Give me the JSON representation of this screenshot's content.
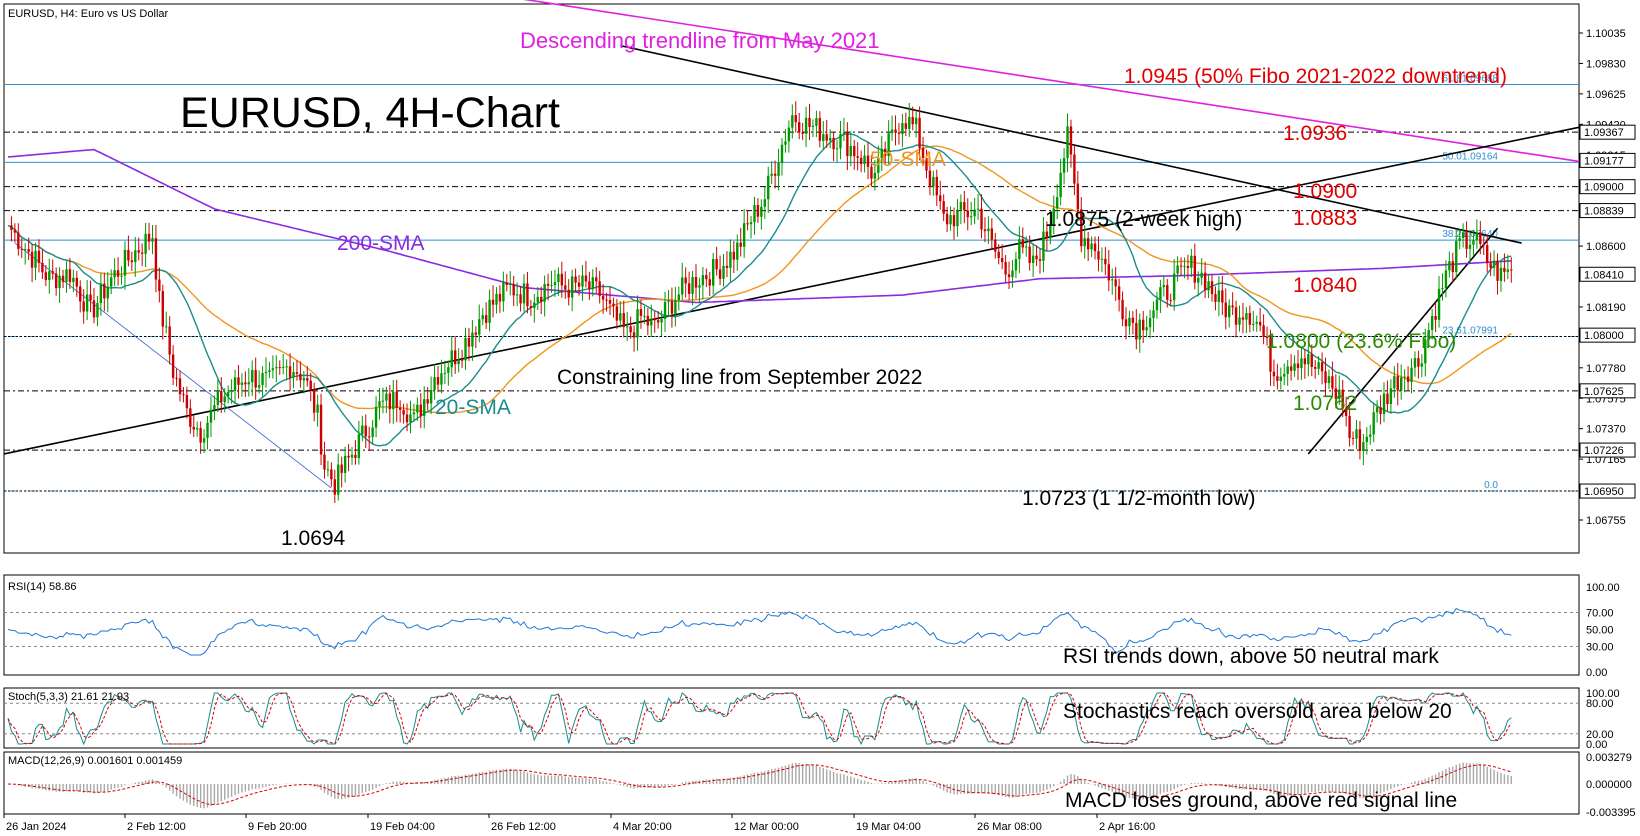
{
  "header": {
    "symbol": "EURUSD, H4:",
    "description": "Euro vs US Dollar"
  },
  "chart_title": "EURUSD, 4H-Chart",
  "colors": {
    "bull": "#009900",
    "bear": "#cc0000",
    "sma20": "#1a8c8c",
    "sma50": "#f0961e",
    "sma200": "#8a2be2",
    "may_trendline": "#e020e0",
    "trendline": "#000000",
    "fibo": "#2f8fd0",
    "red_note": "#e00000",
    "green_note": "#2a8a00",
    "indicator": "#1e78d6",
    "signal": "#dd0000",
    "histogram": "#a8a8a8"
  },
  "chart_data": {
    "type": "candlestick",
    "y_axis": {
      "range": [
        1.0658,
        1.1016
      ],
      "ticks": [
        "1.10035",
        "1.09830",
        "1.09625",
        "1.09420",
        "1.09215",
        "1.08600",
        "1.08190",
        "1.07780",
        "1.07575",
        "1.07370",
        "1.07165",
        "1.06755"
      ],
      "highlight_labels": [
        {
          "value": 1.09367,
          "text": "1.09367"
        },
        {
          "value": 1.09177,
          "text": "1.09177"
        },
        {
          "value": 1.09,
          "text": "1.09000"
        },
        {
          "value": 1.08839,
          "text": "1.08839"
        },
        {
          "value": 1.0841,
          "text": "1.08410"
        },
        {
          "value": 1.08,
          "text": "1.08000"
        },
        {
          "value": 1.07625,
          "text": "1.07625"
        },
        {
          "value": 1.07226,
          "text": "1.07226"
        },
        {
          "value": 1.0695,
          "text": "1.06950"
        }
      ]
    },
    "x_axis": {
      "labels": [
        "26 Jan 2024",
        "2 Feb 12:00",
        "9 Feb 20:00",
        "19 Feb 04:00",
        "26 Feb 12:00",
        "4 Mar 20:00",
        "12 Mar 00:00",
        "19 Mar 04:00",
        "26 Mar 08:00",
        "2 Apr 16:00"
      ]
    },
    "fibo_levels": [
      {
        "label": "61.81.09688",
        "value": 1.09688
      },
      {
        "label": "50.01.09164",
        "value": 1.09164
      },
      {
        "label": "38.21.08640",
        "value": 1.0864
      },
      {
        "label": "23.61.07991",
        "value": 1.07991
      },
      {
        "label": "0.0",
        "value": 1.0695
      }
    ],
    "horizontal_levels": [
      1.09367,
      1.09,
      1.08839,
      1.07625,
      1.07226
    ],
    "candle_anchors": [
      [
        0,
        1.0874
      ],
      [
        6,
        1.0856
      ],
      [
        12,
        1.0838
      ],
      [
        18,
        1.0842
      ],
      [
        24,
        1.0815
      ],
      [
        30,
        1.0838
      ],
      [
        36,
        1.0854
      ],
      [
        42,
        1.0868
      ],
      [
        44,
        1.0822
      ],
      [
        48,
        1.0776
      ],
      [
        52,
        1.0748
      ],
      [
        56,
        1.0735
      ],
      [
        62,
        1.0758
      ],
      [
        70,
        1.0773
      ],
      [
        76,
        1.0768
      ],
      [
        82,
        1.078
      ],
      [
        86,
        1.0773
      ],
      [
        90,
        1.0745
      ],
      [
        92,
        1.0712
      ],
      [
        95,
        1.07
      ],
      [
        98,
        1.0712
      ],
      [
        102,
        1.0728
      ],
      [
        108,
        1.0752
      ],
      [
        114,
        1.0758
      ],
      [
        118,
        1.0742
      ],
      [
        124,
        1.0772
      ],
      [
        132,
        1.0792
      ],
      [
        138,
        1.0815
      ],
      [
        146,
        1.0832
      ],
      [
        152,
        1.0826
      ],
      [
        158,
        1.0836
      ],
      [
        162,
        1.0832
      ],
      [
        168,
        1.0833
      ],
      [
        172,
        1.0828
      ],
      [
        176,
        1.0812
      ],
      [
        180,
        1.08
      ],
      [
        184,
        1.0812
      ],
      [
        188,
        1.0805
      ],
      [
        194,
        1.0826
      ],
      [
        200,
        1.0838
      ],
      [
        206,
        1.0844
      ],
      [
        212,
        1.0858
      ],
      [
        216,
        1.0878
      ],
      [
        220,
        1.0893
      ],
      [
        224,
        1.0922
      ],
      [
        228,
        1.0948
      ],
      [
        232,
        1.0942
      ],
      [
        238,
        1.0936
      ],
      [
        244,
        1.0929
      ],
      [
        248,
        1.092
      ],
      [
        252,
        1.0907
      ],
      [
        256,
        1.0928
      ],
      [
        260,
        1.0948
      ],
      [
        264,
        1.0938
      ],
      [
        268,
        1.0906
      ],
      [
        272,
        1.0878
      ],
      [
        278,
        1.0882
      ],
      [
        282,
        1.0884
      ],
      [
        286,
        1.086
      ],
      [
        290,
        1.0843
      ],
      [
        294,
        1.0857
      ],
      [
        298,
        1.0847
      ],
      [
        302,
        1.0868
      ],
      [
        306,
        1.0912
      ],
      [
        308,
        1.0932
      ],
      [
        312,
        1.0868
      ],
      [
        316,
        1.086
      ],
      [
        320,
        1.0842
      ],
      [
        324,
        1.0818
      ],
      [
        328,
        1.0806
      ],
      [
        332,
        1.0815
      ],
      [
        336,
        1.0827
      ],
      [
        340,
        1.0838
      ],
      [
        344,
        1.0846
      ],
      [
        348,
        1.0838
      ],
      [
        352,
        1.0822
      ],
      [
        356,
        1.0815
      ],
      [
        360,
        1.0818
      ],
      [
        364,
        1.0806
      ],
      [
        368,
        1.0775
      ],
      [
        372,
        1.0782
      ],
      [
        376,
        1.0786
      ],
      [
        380,
        1.0777
      ],
      [
        384,
        1.0768
      ],
      [
        388,
        1.0755
      ],
      [
        390,
        1.0732
      ],
      [
        394,
        1.0728
      ],
      [
        398,
        1.0748
      ],
      [
        402,
        1.0765
      ],
      [
        406,
        1.0776
      ],
      [
        410,
        1.0782
      ],
      [
        414,
        1.0812
      ],
      [
        418,
        1.084
      ],
      [
        422,
        1.086
      ],
      [
        426,
        1.0866
      ],
      [
        430,
        1.085
      ],
      [
        434,
        1.084
      ],
      [
        437,
        1.0844
      ]
    ],
    "annotations": {
      "trendline_may": "Descending trendline from May 2021",
      "constraining_line": "Constraining line from September 2022",
      "sma200": "200-SMA",
      "sma50": "50-SMA",
      "sma20": "20-SMA",
      "low_1": "1.0694",
      "low_2": "1.0723 (1 1/2-month low)",
      "high_2w": "1.0875 (2-week high)",
      "level_1": "1.0945 (50% Fibo 2021-2022 downtrend)",
      "level_2": "1.0936",
      "level_3": "1.0900",
      "level_4": "1.0883",
      "level_5": "1.0840",
      "level_6": "1.0800 (23.6% Fibo)",
      "level_7": "1.0762"
    }
  },
  "rsi": {
    "label": "RSI(14) 58.86",
    "ticks": [
      "100.00",
      "70.00",
      "50.00",
      "30.00",
      "0.00"
    ],
    "levels": [
      70,
      30
    ],
    "range": [
      0,
      100
    ],
    "note": "RSI trends down, above 50 neutral mark"
  },
  "stoch": {
    "label": "Stoch(5,3,3) 21.61 21.93",
    "ticks": [
      "100.00",
      "80.00",
      "20.00",
      "0.00"
    ],
    "levels": [
      80,
      20
    ],
    "range": [
      0,
      100
    ],
    "note": "Stochastics reach oversold area below 20"
  },
  "macd": {
    "label": "MACD(12,26,9) 0.001601 0.001459",
    "ticks": [
      "0.003279",
      "0.000000",
      "-0.003395"
    ],
    "range": [
      -0.003395,
      0.003279
    ],
    "note": "MACD loses ground, above red signal line"
  }
}
